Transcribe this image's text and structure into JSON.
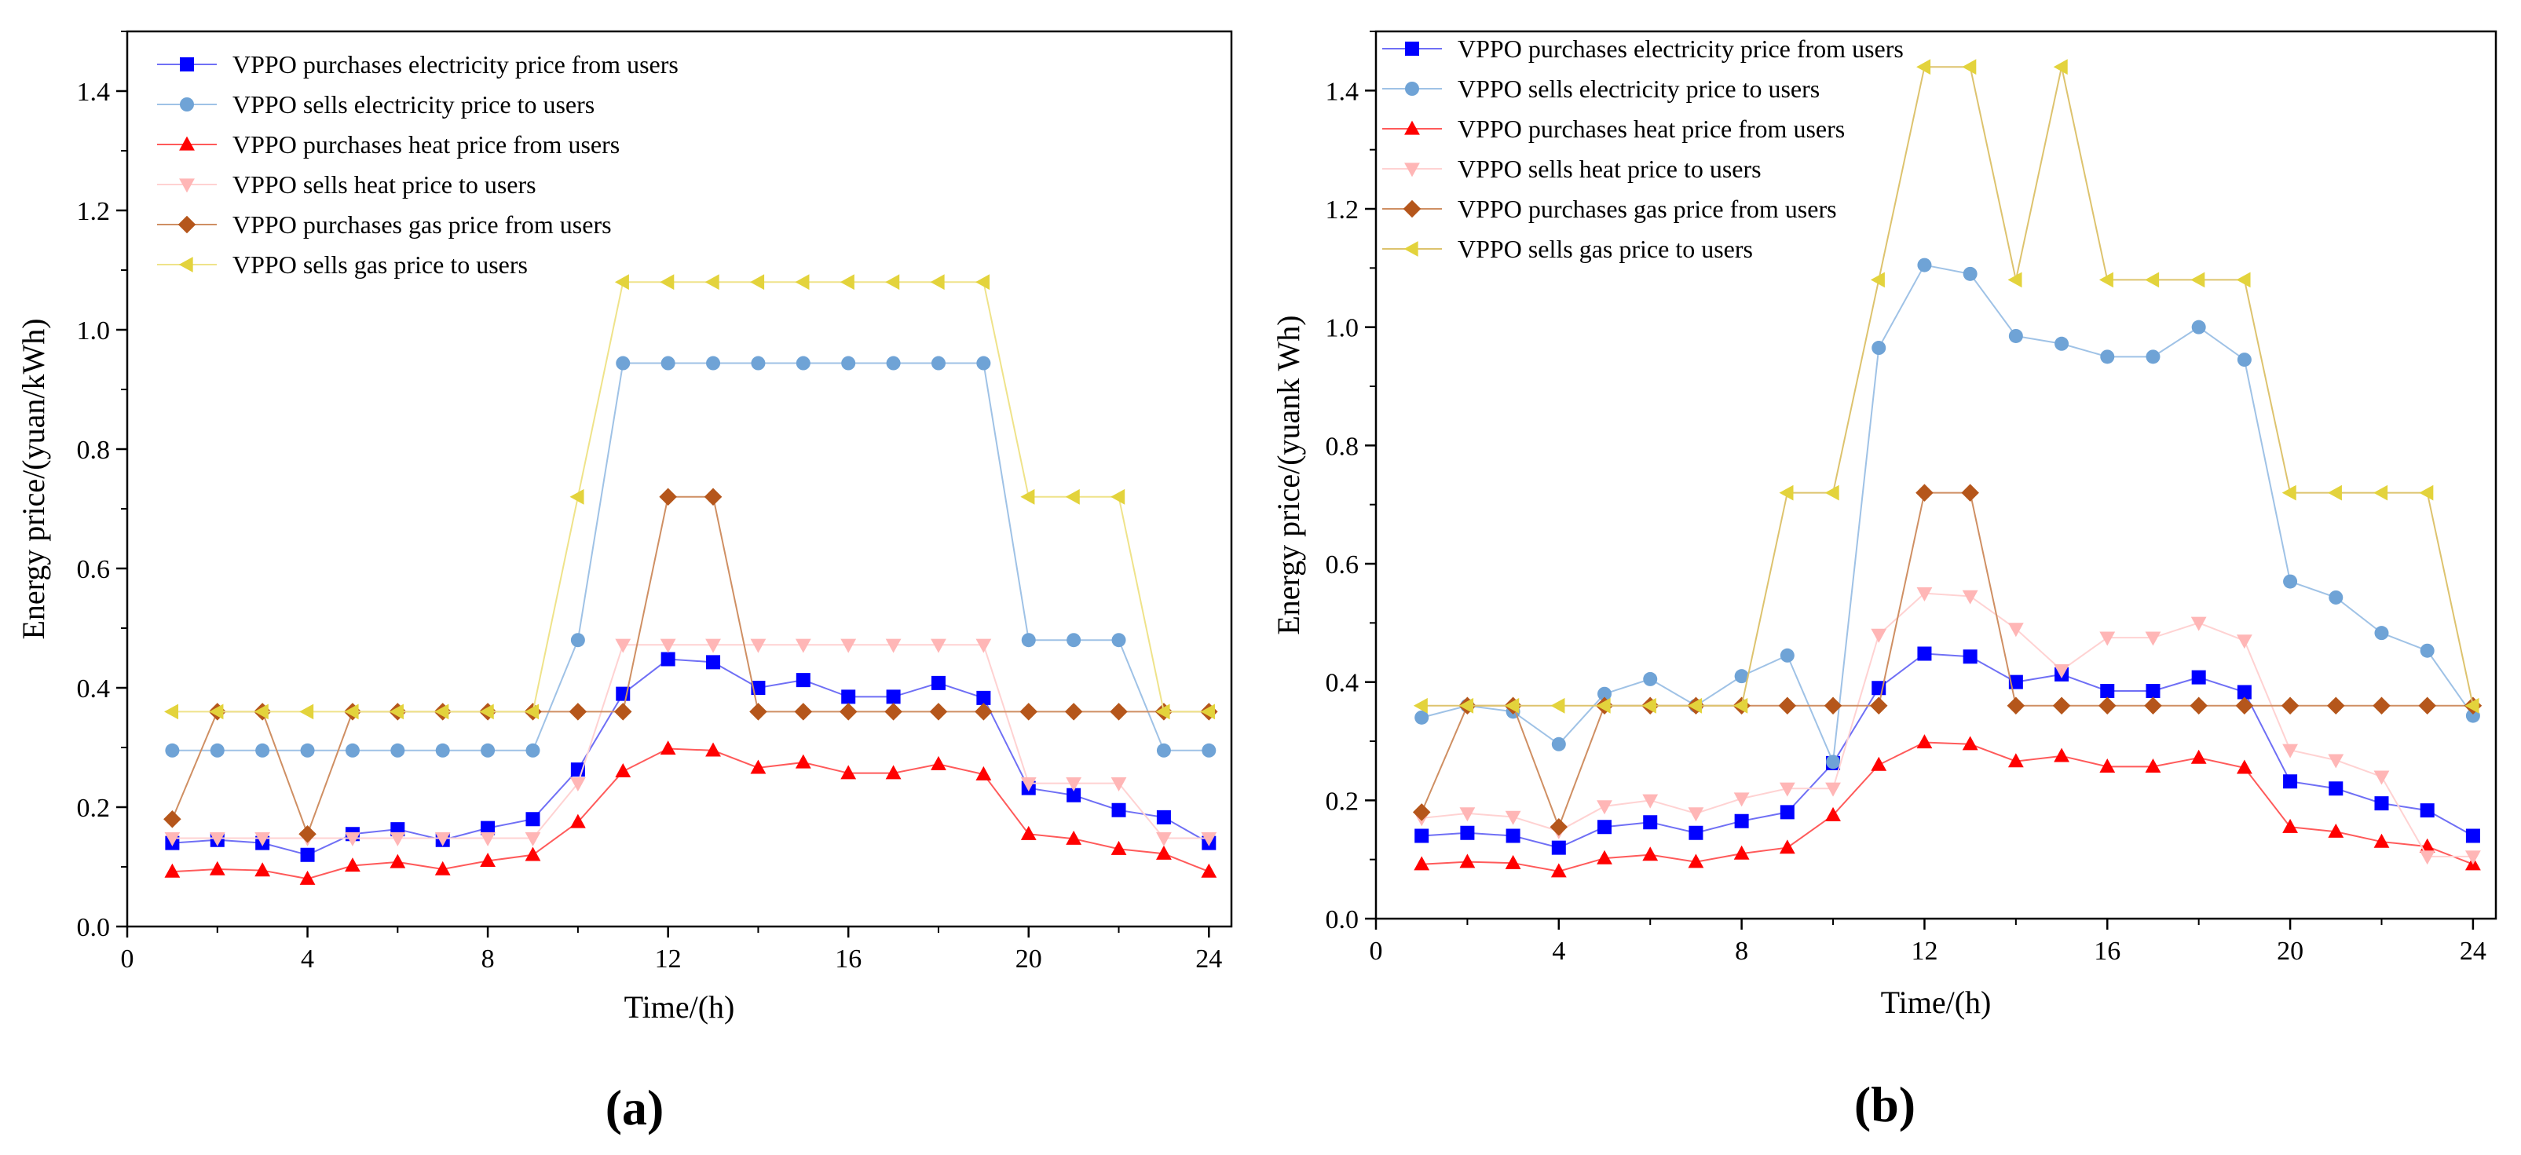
{
  "chart_data": [
    {
      "type": "line",
      "panel_label": "(a)",
      "xlabel": "Time/(h)",
      "ylabel": "Energy price/(yuan/kWh)",
      "xlim": [
        0,
        24.5
      ],
      "ylim": [
        0,
        1.5
      ],
      "xticks": [
        0,
        4,
        8,
        12,
        16,
        20,
        24
      ],
      "yticks": [
        0.0,
        0.2,
        0.4,
        0.6,
        0.8,
        1.0,
        1.2,
        1.4
      ],
      "ytick_labels": [
        "0.0",
        "0.2",
        "0.4",
        "0.6",
        "0.8",
        "1.0",
        "1.2",
        "1.4"
      ],
      "legend_position": "top-left",
      "x": [
        1,
        2,
        3,
        4,
        5,
        6,
        7,
        8,
        9,
        10,
        11,
        12,
        13,
        14,
        15,
        16,
        17,
        18,
        19,
        20,
        21,
        22,
        23,
        24
      ],
      "series": [
        {
          "name": "VPPO purchases electricity price from users",
          "marker": "square",
          "color": "#0000ff",
          "line_color": "#6f6ff5",
          "values": [
            0.14,
            0.145,
            0.14,
            0.12,
            0.155,
            0.163,
            0.145,
            0.165,
            0.18,
            0.263,
            0.39,
            0.448,
            0.443,
            0.4,
            0.413,
            0.385,
            0.385,
            0.408,
            0.383,
            0.232,
            0.22,
            0.195,
            0.183,
            0.14
          ]
        },
        {
          "name": "VPPO sells electricity price to users",
          "marker": "circle",
          "color": "#6fa3d6",
          "line_color": "#9fc2e6",
          "values": [
            0.295,
            0.295,
            0.295,
            0.295,
            0.295,
            0.295,
            0.295,
            0.295,
            0.295,
            0.48,
            0.944,
            0.944,
            0.944,
            0.944,
            0.944,
            0.944,
            0.944,
            0.944,
            0.944,
            0.48,
            0.48,
            0.48,
            0.295,
            0.295
          ]
        },
        {
          "name": "VPPO purchases heat price from users",
          "marker": "triangle-up",
          "color": "#ff0000",
          "line_color": "#ff5a5a",
          "values": [
            0.092,
            0.096,
            0.094,
            0.08,
            0.102,
            0.108,
            0.096,
            0.11,
            0.12,
            0.175,
            0.26,
            0.298,
            0.295,
            0.266,
            0.275,
            0.257,
            0.257,
            0.272,
            0.255,
            0.155,
            0.147,
            0.13,
            0.122,
            0.092
          ]
        },
        {
          "name": "VPPO sells heat price to users",
          "marker": "triangle-down",
          "color": "#ffb6b6",
          "line_color": "#ffd2d2",
          "values": [
            0.148,
            0.148,
            0.148,
            0.148,
            0.148,
            0.148,
            0.148,
            0.148,
            0.148,
            0.24,
            0.472,
            0.472,
            0.472,
            0.472,
            0.472,
            0.472,
            0.472,
            0.472,
            0.472,
            0.24,
            0.24,
            0.24,
            0.148,
            0.148
          ]
        },
        {
          "name": "VPPO purchases gas price from users",
          "marker": "diamond",
          "color": "#b5561b",
          "line_color": "#cf8f63",
          "values": [
            0.18,
            0.36,
            0.36,
            0.155,
            0.36,
            0.36,
            0.36,
            0.36,
            0.36,
            0.36,
            0.36,
            0.72,
            0.72,
            0.36,
            0.36,
            0.36,
            0.36,
            0.36,
            0.36,
            0.36,
            0.36,
            0.36,
            0.36,
            0.36
          ]
        },
        {
          "name": "VPPO sells gas price to users",
          "marker": "triangle-left",
          "color": "#e3d33c",
          "line_color": "#efe38a",
          "values": [
            0.36,
            0.36,
            0.36,
            0.36,
            0.36,
            0.36,
            0.36,
            0.36,
            0.36,
            0.72,
            1.08,
            1.08,
            1.08,
            1.08,
            1.08,
            1.08,
            1.08,
            1.08,
            1.08,
            0.72,
            0.72,
            0.72,
            0.36,
            0.36
          ]
        }
      ]
    },
    {
      "type": "line",
      "panel_label": "(b)",
      "xlabel": "Time/(h)",
      "ylabel": "Energy price/(yuank Wh)",
      "xlim": [
        0,
        24.5
      ],
      "ylim": [
        0,
        1.5
      ],
      "xticks": [
        0,
        4,
        8,
        12,
        16,
        20,
        24
      ],
      "yticks": [
        0.0,
        0.2,
        0.4,
        0.6,
        0.8,
        1.0,
        1.2,
        1.4
      ],
      "ytick_labels": [
        "0.0",
        "0.2",
        "0.4",
        "0.6",
        "0.8",
        "1.0",
        "1.2",
        "1.4"
      ],
      "legend_position": "top-left",
      "x": [
        1,
        2,
        3,
        4,
        5,
        6,
        7,
        8,
        9,
        10,
        11,
        12,
        13,
        14,
        15,
        16,
        17,
        18,
        19,
        20,
        21,
        22,
        23,
        24
      ],
      "series": [
        {
          "name": "VPPO purchases electricity price from users",
          "marker": "square",
          "color": "#0000ff",
          "line_color": "#6f6ff5",
          "values": [
            0.14,
            0.145,
            0.14,
            0.12,
            0.155,
            0.163,
            0.145,
            0.165,
            0.18,
            0.263,
            0.39,
            0.448,
            0.443,
            0.4,
            0.413,
            0.385,
            0.385,
            0.408,
            0.383,
            0.232,
            0.22,
            0.195,
            0.183,
            0.14
          ]
        },
        {
          "name": "VPPO sells electricity price to users",
          "marker": "circle",
          "color": "#6fa3d6",
          "line_color": "#9fc2e6",
          "values": [
            0.34,
            0.36,
            0.35,
            0.295,
            0.38,
            0.405,
            0.36,
            0.41,
            0.445,
            0.265,
            0.965,
            1.105,
            1.09,
            0.985,
            0.972,
            0.95,
            0.95,
            1.0,
            0.945,
            0.57,
            0.543,
            0.483,
            0.453,
            0.343
          ]
        },
        {
          "name": "VPPO purchases heat price from users",
          "marker": "triangle-up",
          "color": "#ff0000",
          "line_color": "#ff5a5a",
          "values": [
            0.092,
            0.096,
            0.094,
            0.08,
            0.102,
            0.108,
            0.096,
            0.11,
            0.12,
            0.175,
            0.26,
            0.298,
            0.295,
            0.266,
            0.275,
            0.257,
            0.257,
            0.272,
            0.255,
            0.155,
            0.147,
            0.13,
            0.122,
            0.092
          ]
        },
        {
          "name": "VPPO sells heat price to users",
          "marker": "triangle-down",
          "color": "#ffb6b6",
          "line_color": "#ffd2d2",
          "values": [
            0.17,
            0.178,
            0.172,
            0.148,
            0.19,
            0.2,
            0.178,
            0.203,
            0.22,
            0.22,
            0.48,
            0.55,
            0.545,
            0.49,
            0.42,
            0.475,
            0.475,
            0.5,
            0.47,
            0.285,
            0.268,
            0.24,
            0.105,
            0.105
          ]
        },
        {
          "name": "VPPO purchases gas price from users",
          "marker": "diamond",
          "color": "#b5561b",
          "line_color": "#cf8f63",
          "values": [
            0.18,
            0.36,
            0.36,
            0.155,
            0.36,
            0.36,
            0.36,
            0.36,
            0.36,
            0.36,
            0.36,
            0.72,
            0.72,
            0.36,
            0.36,
            0.36,
            0.36,
            0.36,
            0.36,
            0.36,
            0.36,
            0.36,
            0.36,
            0.36
          ]
        },
        {
          "name": "VPPO sells gas price to users",
          "marker": "triangle-left",
          "color": "#e3d33c",
          "line_color": "#ddc36e",
          "values": [
            0.36,
            0.36,
            0.36,
            0.36,
            0.36,
            0.36,
            0.36,
            0.36,
            0.72,
            0.72,
            1.08,
            1.44,
            1.44,
            1.08,
            1.44,
            1.08,
            1.08,
            1.08,
            1.08,
            0.72,
            0.72,
            0.72,
            0.72,
            0.36
          ]
        }
      ]
    }
  ]
}
